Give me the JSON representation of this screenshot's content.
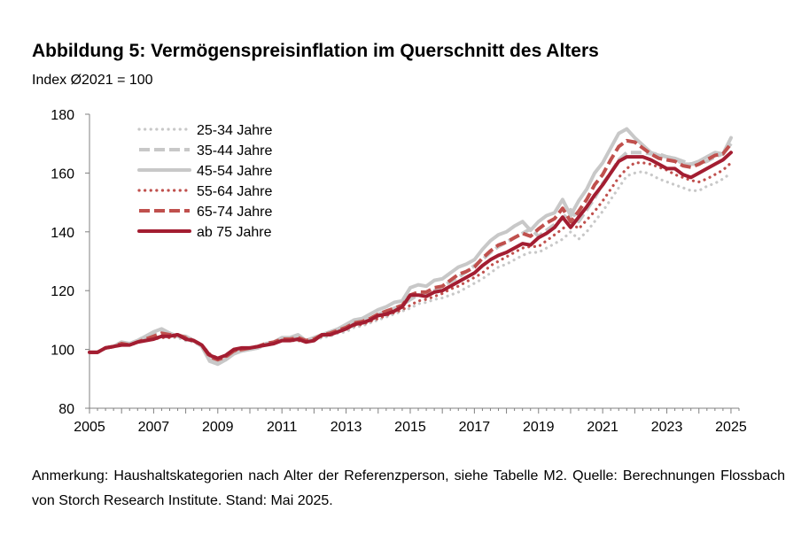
{
  "chart_data": {
    "type": "line",
    "title": "Abbildung 5: Vermögenspreisinflation im Querschnitt des Alters",
    "subtitle": "Index Ø2021 = 100",
    "xlabel": "",
    "ylabel": "",
    "xlim": [
      2005,
      2025.25
    ],
    "ylim": [
      80,
      180
    ],
    "x_ticks": [
      "2005",
      "2007",
      "2009",
      "2011",
      "2013",
      "2015",
      "2017",
      "2019",
      "2021",
      "2023",
      "2025"
    ],
    "y_ticks": [
      "80",
      "100",
      "120",
      "140",
      "160",
      "180"
    ],
    "legend_position": "top-left",
    "x": [
      2005.0,
      2005.25,
      2005.5,
      2005.75,
      2006.0,
      2006.25,
      2006.5,
      2006.75,
      2007.0,
      2007.25,
      2007.5,
      2007.75,
      2008.0,
      2008.25,
      2008.5,
      2008.75,
      2009.0,
      2009.25,
      2009.5,
      2009.75,
      2010.0,
      2010.25,
      2010.5,
      2010.75,
      2011.0,
      2011.25,
      2011.5,
      2011.75,
      2012.0,
      2012.25,
      2012.5,
      2012.75,
      2013.0,
      2013.25,
      2013.5,
      2013.75,
      2014.0,
      2014.25,
      2014.5,
      2014.75,
      2015.0,
      2015.25,
      2015.5,
      2015.75,
      2016.0,
      2016.25,
      2016.5,
      2016.75,
      2017.0,
      2017.25,
      2017.5,
      2017.75,
      2018.0,
      2018.25,
      2018.5,
      2018.75,
      2019.0,
      2019.25,
      2019.5,
      2019.75,
      2020.0,
      2020.25,
      2020.5,
      2020.75,
      2021.0,
      2021.25,
      2021.5,
      2021.75,
      2022.0,
      2022.25,
      2022.5,
      2022.75,
      2023.0,
      2023.25,
      2023.5,
      2023.75,
      2024.0,
      2024.25,
      2024.5,
      2024.75,
      2025.0
    ],
    "series": [
      {
        "name": "25-34 Jahre",
        "color": "#c8c8c8",
        "style": "dotted",
        "values": [
          99.0,
          99.0,
          100.5,
          101.0,
          101.5,
          101.5,
          102.5,
          103.5,
          104.0,
          104.5,
          104.0,
          104.0,
          103.0,
          102.5,
          101.0,
          97.5,
          96.5,
          97.0,
          99.0,
          99.5,
          100.0,
          100.5,
          101.5,
          102.0,
          103.0,
          103.0,
          103.0,
          102.5,
          103.0,
          104.0,
          104.5,
          105.5,
          106.0,
          107.5,
          108.0,
          109.0,
          110.0,
          111.0,
          112.0,
          113.0,
          114.0,
          115.5,
          116.0,
          117.0,
          117.5,
          118.5,
          119.5,
          121.0,
          122.5,
          124.0,
          126.0,
          128.0,
          129.0,
          130.5,
          132.0,
          133.0,
          133.0,
          134.5,
          136.0,
          137.5,
          140.0,
          137.5,
          140.0,
          143.5,
          147.0,
          151.0,
          155.0,
          159.0,
          160.0,
          160.5,
          159.5,
          158.0,
          157.0,
          156.0,
          155.0,
          154.0,
          154.0,
          155.5,
          156.5,
          158.0,
          160.0
        ]
      },
      {
        "name": "35-44 Jahre",
        "color": "#c8c8c8",
        "style": "dashed",
        "values": [
          99.0,
          99.0,
          100.5,
          101.0,
          102.0,
          102.0,
          103.0,
          104.5,
          105.5,
          106.5,
          105.5,
          104.5,
          104.0,
          103.0,
          101.5,
          97.0,
          95.5,
          96.5,
          99.0,
          99.5,
          100.0,
          100.5,
          101.5,
          102.0,
          103.5,
          103.5,
          104.0,
          103.0,
          103.5,
          104.5,
          105.5,
          106.5,
          107.5,
          109.0,
          109.5,
          110.5,
          112.0,
          113.0,
          114.0,
          115.0,
          117.0,
          118.5,
          119.0,
          120.0,
          121.5,
          123.0,
          124.5,
          126.5,
          128.5,
          130.5,
          133.0,
          135.0,
          136.5,
          138.0,
          139.5,
          141.0,
          138.5,
          140.5,
          142.5,
          144.5,
          147.5,
          143.5,
          147.5,
          151.5,
          156.5,
          160.0,
          164.5,
          167.0,
          167.0,
          167.0,
          166.5,
          166.5,
          165.5,
          165.0,
          164.0,
          163.0,
          163.0,
          164.0,
          165.5,
          166.5,
          170.0
        ]
      },
      {
        "name": "45-54 Jahre",
        "color": "#c8c8c8",
        "style": "solid",
        "values": [
          99.0,
          99.0,
          100.5,
          101.0,
          102.5,
          102.0,
          103.0,
          104.5,
          106.0,
          107.0,
          105.5,
          104.5,
          104.5,
          103.0,
          101.0,
          96.0,
          95.0,
          96.5,
          98.5,
          99.5,
          100.0,
          100.5,
          102.0,
          102.5,
          104.0,
          104.0,
          105.0,
          103.0,
          104.0,
          105.0,
          106.0,
          107.0,
          108.5,
          110.0,
          110.5,
          112.0,
          113.5,
          114.5,
          116.0,
          116.5,
          121.0,
          122.0,
          121.5,
          123.5,
          124.0,
          126.0,
          128.0,
          129.0,
          130.5,
          134.0,
          137.0,
          139.0,
          140.0,
          142.0,
          143.5,
          140.5,
          143.5,
          145.5,
          146.5,
          151.0,
          145.5,
          150.5,
          154.5,
          160.0,
          163.5,
          168.5,
          173.5,
          175.0,
          172.0,
          169.5,
          167.0,
          166.0,
          165.5,
          165.0,
          163.0,
          163.0,
          164.0,
          165.5,
          167.0,
          166.5,
          172.0
        ]
      },
      {
        "name": "55-64 Jahre",
        "color": "#c0504d",
        "style": "dotted",
        "values": [
          99.0,
          99.0,
          100.5,
          101.0,
          101.5,
          101.5,
          102.5,
          103.0,
          103.5,
          104.0,
          104.0,
          104.5,
          104.0,
          103.0,
          101.5,
          98.5,
          97.0,
          97.5,
          99.5,
          100.0,
          100.5,
          101.0,
          101.5,
          102.0,
          103.0,
          103.0,
          103.0,
          102.5,
          103.0,
          104.5,
          105.0,
          106.0,
          107.0,
          108.0,
          108.5,
          109.5,
          110.5,
          111.5,
          112.5,
          113.5,
          115.0,
          116.5,
          117.0,
          118.0,
          119.0,
          120.5,
          121.5,
          123.0,
          124.5,
          126.0,
          128.5,
          130.0,
          131.5,
          133.0,
          134.5,
          135.0,
          135.0,
          137.0,
          139.0,
          141.0,
          143.5,
          141.0,
          144.0,
          147.0,
          150.5,
          154.5,
          158.5,
          161.5,
          163.5,
          163.5,
          163.0,
          162.0,
          161.0,
          159.5,
          158.5,
          157.5,
          157.0,
          158.0,
          159.5,
          161.0,
          163.5
        ]
      },
      {
        "name": "65-74 Jahre",
        "color": "#c0504d",
        "style": "dashed",
        "values": [
          99.0,
          99.0,
          100.5,
          101.0,
          102.0,
          101.5,
          102.5,
          103.5,
          104.5,
          105.5,
          105.0,
          105.0,
          104.0,
          103.0,
          101.5,
          97.5,
          96.5,
          97.5,
          99.5,
          100.0,
          100.5,
          101.0,
          102.0,
          102.5,
          103.5,
          103.5,
          104.0,
          103.0,
          103.5,
          105.0,
          105.5,
          106.5,
          107.5,
          109.0,
          109.5,
          110.5,
          112.0,
          113.0,
          114.0,
          115.0,
          118.5,
          119.5,
          119.5,
          121.0,
          121.5,
          123.5,
          125.5,
          126.5,
          128.0,
          131.0,
          133.5,
          135.5,
          136.5,
          138.0,
          139.5,
          138.5,
          141.0,
          143.0,
          144.5,
          148.0,
          143.5,
          147.0,
          151.0,
          156.0,
          159.5,
          164.5,
          169.0,
          171.0,
          170.5,
          168.5,
          166.5,
          165.0,
          164.5,
          164.0,
          162.5,
          162.0,
          163.0,
          164.5,
          166.0,
          166.5,
          170.0
        ]
      },
      {
        "name": "ab 75 Jahre",
        "color": "#a31d31",
        "style": "solid",
        "values": [
          99.0,
          99.0,
          100.5,
          101.0,
          101.5,
          101.5,
          102.5,
          103.0,
          103.5,
          104.5,
          104.5,
          105.0,
          103.5,
          103.0,
          101.5,
          98.0,
          97.0,
          98.0,
          100.0,
          100.5,
          100.5,
          101.0,
          101.5,
          102.0,
          103.0,
          103.0,
          103.5,
          102.5,
          103.0,
          105.0,
          105.0,
          106.0,
          107.0,
          108.5,
          109.0,
          110.0,
          111.5,
          112.0,
          113.0,
          114.5,
          118.5,
          118.5,
          118.0,
          119.5,
          120.0,
          121.5,
          123.0,
          124.5,
          126.0,
          128.5,
          130.5,
          132.0,
          133.0,
          134.5,
          136.0,
          135.5,
          138.0,
          139.5,
          141.5,
          145.0,
          141.5,
          145.0,
          148.5,
          152.5,
          156.0,
          160.0,
          164.0,
          165.5,
          165.5,
          165.5,
          164.5,
          163.0,
          161.5,
          161.5,
          159.5,
          158.5,
          160.0,
          161.5,
          163.0,
          164.5,
          167.0
        ]
      }
    ]
  },
  "note": "Anmerkung: Haushaltskategorien nach Alter der Referenzperson, siehe Tabelle M2. Quelle: Berechnungen Flossbach von Storch Research Institute. Stand: Mai 2025."
}
